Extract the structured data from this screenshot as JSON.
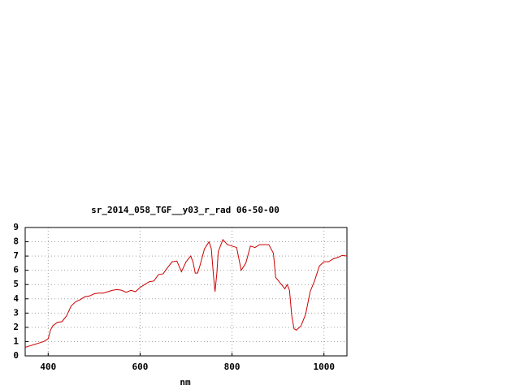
{
  "chart_data": {
    "type": "line",
    "title": "sr_2014_058_TGF__y03_r_rad 06-50-00",
    "x_label": "nm",
    "x": [
      350,
      360,
      370,
      380,
      390,
      400,
      405,
      410,
      420,
      430,
      440,
      450,
      460,
      470,
      480,
      490,
      500,
      510,
      520,
      530,
      540,
      550,
      560,
      570,
      580,
      590,
      600,
      610,
      620,
      630,
      640,
      650,
      660,
      670,
      680,
      690,
      700,
      710,
      715,
      720,
      725,
      730,
      740,
      750,
      755,
      760,
      763,
      767,
      770,
      780,
      790,
      800,
      810,
      820,
      830,
      840,
      850,
      860,
      870,
      880,
      890,
      895,
      910,
      915,
      920,
      925,
      930,
      935,
      940,
      950,
      960,
      970,
      980,
      990,
      1000,
      1010,
      1020,
      1030,
      1040,
      1050
    ],
    "series": [
      {
        "color": "#cc0000",
        "values": [
          0.6,
          0.7,
          0.8,
          0.9,
          1.0,
          1.2,
          1.8,
          2.1,
          2.35,
          2.4,
          2.8,
          3.5,
          3.8,
          3.95,
          4.15,
          4.2,
          4.35,
          4.4,
          4.4,
          4.5,
          4.6,
          4.65,
          4.6,
          4.45,
          4.6,
          4.5,
          4.8,
          5.0,
          5.2,
          5.25,
          5.7,
          5.75,
          6.2,
          6.6,
          6.65,
          5.9,
          6.6,
          7.0,
          6.6,
          5.8,
          5.8,
          6.3,
          7.5,
          8.0,
          7.5,
          5.5,
          4.5,
          5.8,
          7.3,
          8.15,
          7.8,
          7.7,
          7.6,
          6.0,
          6.5,
          7.7,
          7.6,
          7.8,
          7.8,
          7.8,
          7.2,
          5.5,
          4.9,
          4.7,
          5.0,
          4.6,
          2.8,
          1.9,
          1.8,
          2.1,
          2.9,
          4.5,
          5.3,
          6.3,
          6.6,
          6.6,
          6.8,
          6.9,
          7.05,
          7.0
        ]
      }
    ],
    "xlim": [
      350,
      1050
    ],
    "xticks": [
      400,
      600,
      800,
      1000
    ],
    "ylim": [
      0,
      9
    ],
    "yticks": [
      0,
      1,
      2,
      3,
      4,
      5,
      6,
      7,
      8,
      9
    ],
    "grid": true
  }
}
